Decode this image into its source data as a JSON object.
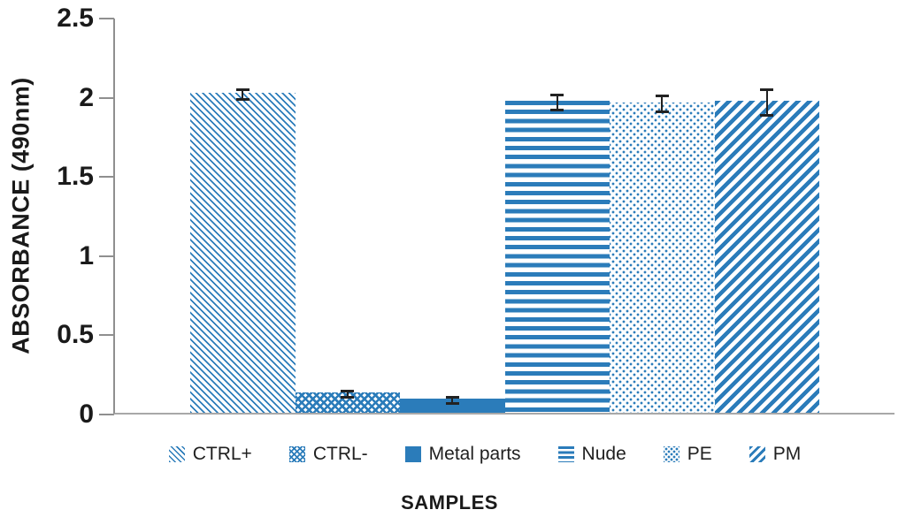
{
  "chart": {
    "y_axis_title": "ABSORBANCE (490nm)",
    "x_axis_title": "SAMPLES"
  },
  "colors": {
    "bar_blue": "#2b7cba",
    "axis_gray": "#8f8f8f",
    "baseline_gray": "#a8a8a8",
    "text": "#1a1a1a",
    "error_bar": "#222222"
  },
  "chart_data": {
    "type": "bar",
    "title": "",
    "xlabel": "SAMPLES",
    "ylabel": "ABSORBANCE (490nm)",
    "ylim": [
      0,
      2.5
    ],
    "ytick_step": 0.5,
    "ytick_labels": [
      "0",
      "0.5",
      "1",
      "1.5",
      "2",
      "2.5"
    ],
    "grid": false,
    "legend_position": "bottom",
    "categories": [
      "CTRL+",
      "CTRL-",
      "Metal parts",
      "Nude",
      "PE",
      "PM"
    ],
    "values": [
      2.02,
      0.13,
      0.09,
      1.97,
      1.96,
      1.97
    ],
    "errors": [
      0.03,
      0.02,
      0.02,
      0.05,
      0.05,
      0.08
    ],
    "patterns": [
      "diagonal-down-thin",
      "diamond-grid",
      "solid",
      "horizontal-stripes",
      "dots",
      "diagonal-up-wide"
    ]
  }
}
